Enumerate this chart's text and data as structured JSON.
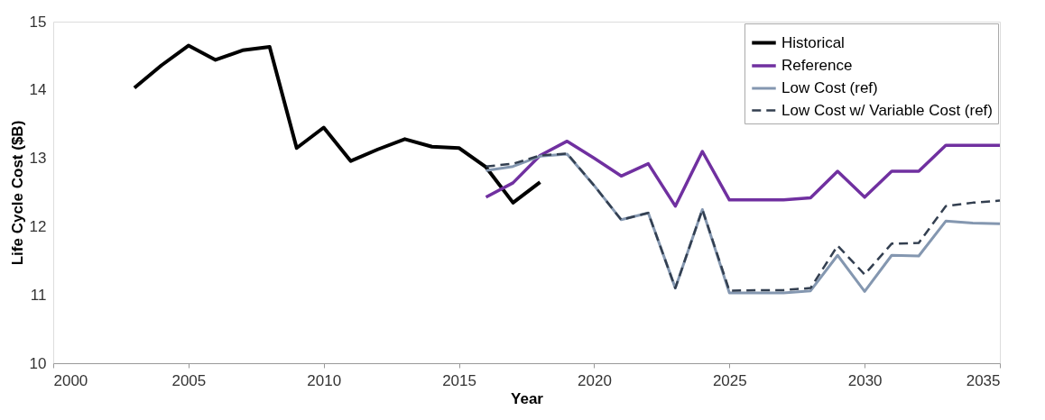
{
  "chart_data": {
    "type": "line",
    "xlabel": "Year",
    "ylabel": "Life Cycle Cost ($B)",
    "xlim": [
      2000,
      2035
    ],
    "xticks": [
      2000,
      2005,
      2010,
      2015,
      2020,
      2025,
      2030,
      2035
    ],
    "ylim": [
      10,
      15
    ],
    "yticks": [
      10,
      11,
      12,
      13,
      14,
      15
    ],
    "grid": false,
    "legend": "top right",
    "marker": "none",
    "series": [
      {
        "name": "Historical",
        "color": "#000000",
        "line_style": "solid",
        "x": [
          2003,
          2004,
          2005,
          2006,
          2007,
          2008,
          2009,
          2010,
          2011,
          2012,
          2013,
          2014,
          2015,
          2016,
          2017,
          2018
        ],
        "values": [
          14.03,
          14.36,
          14.65,
          14.44,
          14.58,
          14.63,
          13.15,
          13.45,
          12.96,
          13.13,
          13.28,
          13.17,
          13.15,
          12.87,
          12.35,
          12.65
        ]
      },
      {
        "name": "Reference",
        "color": "#7030a0",
        "line_style": "solid",
        "x": [
          2016,
          2017,
          2018,
          2019,
          2020,
          2021,
          2022,
          2023,
          2024,
          2025,
          2026,
          2027,
          2028,
          2029,
          2030,
          2031,
          2032,
          2033,
          2034,
          2035
        ],
        "values": [
          12.43,
          12.64,
          13.04,
          13.25,
          13.0,
          12.74,
          12.92,
          12.3,
          13.1,
          12.39,
          12.39,
          12.39,
          12.42,
          12.81,
          12.43,
          12.81,
          12.81,
          13.19,
          13.19,
          13.19
        ]
      },
      {
        "name": "Low Cost (ref)",
        "color": "#8497b0",
        "line_style": "solid",
        "x": [
          2016,
          2017,
          2018,
          2019,
          2020,
          2021,
          2022,
          2023,
          2024,
          2025,
          2026,
          2027,
          2028,
          2029,
          2030,
          2031,
          2032,
          2033,
          2034,
          2035
        ],
        "values": [
          12.82,
          12.88,
          13.03,
          13.06,
          12.6,
          12.1,
          12.2,
          11.1,
          12.25,
          11.03,
          11.03,
          11.03,
          11.06,
          11.58,
          11.05,
          11.58,
          11.57,
          12.08,
          12.05,
          12.04
        ]
      },
      {
        "name": "Low Cost w/ Variable Cost (ref)",
        "color": "#333f50",
        "line_style": "dashed",
        "x": [
          2016,
          2017,
          2018,
          2019,
          2020,
          2021,
          2022,
          2023,
          2024,
          2025,
          2026,
          2027,
          2028,
          2029,
          2030,
          2031,
          2032,
          2033,
          2034,
          2035
        ],
        "values": [
          12.88,
          12.92,
          13.04,
          13.07,
          12.6,
          12.1,
          12.2,
          11.1,
          12.25,
          11.06,
          11.07,
          11.07,
          11.1,
          11.72,
          11.3,
          11.75,
          11.76,
          12.3,
          12.35,
          12.38
        ]
      }
    ]
  }
}
